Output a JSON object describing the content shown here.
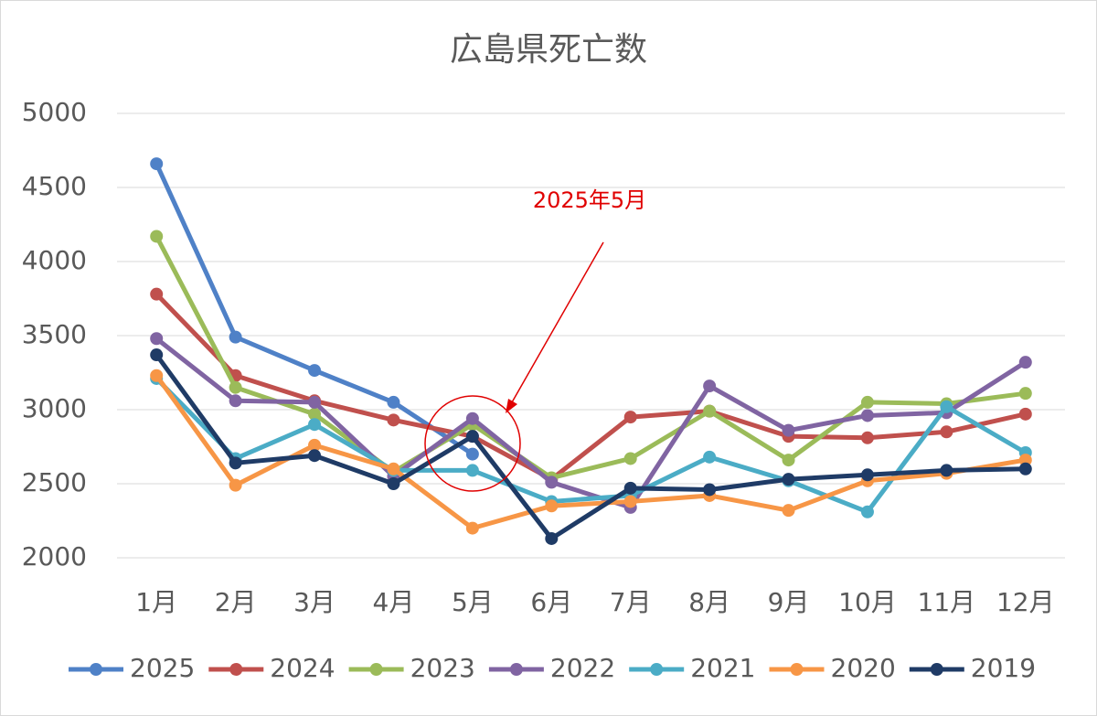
{
  "chart_data": {
    "type": "line",
    "title": "広島県死亡数",
    "categories": [
      "1月",
      "2月",
      "3月",
      "4月",
      "5月",
      "6月",
      "7月",
      "8月",
      "9月",
      "10月",
      "11月",
      "12月"
    ],
    "series": [
      {
        "name": "2025",
        "color": "#4f81c7",
        "values": [
          4660,
          3490,
          3265,
          3050,
          2700,
          null,
          null,
          null,
          null,
          null,
          null,
          null
        ]
      },
      {
        "name": "2024",
        "color": "#c0504d",
        "values": [
          3780,
          3230,
          3060,
          2930,
          2820,
          2530,
          2950,
          2990,
          2820,
          2810,
          2850,
          2970
        ]
      },
      {
        "name": "2023",
        "color": "#9bbb59",
        "values": [
          4170,
          3150,
          2970,
          2580,
          2900,
          2540,
          2670,
          2990,
          2660,
          3050,
          3040,
          3110
        ]
      },
      {
        "name": "2022",
        "color": "#8064a2",
        "values": [
          3480,
          3060,
          3050,
          2550,
          2940,
          2510,
          2340,
          3160,
          2860,
          2960,
          2980,
          3320
        ]
      },
      {
        "name": "2021",
        "color": "#4bacc6",
        "values": [
          3210,
          2670,
          2900,
          2590,
          2590,
          2380,
          2420,
          2680,
          2520,
          2310,
          3020,
          2710
        ]
      },
      {
        "name": "2020",
        "color": "#f79646",
        "values": [
          3230,
          2490,
          2760,
          2600,
          2200,
          2350,
          2380,
          2420,
          2320,
          2520,
          2570,
          2660
        ]
      },
      {
        "name": "2019",
        "color": "#1f3b66",
        "values": [
          3370,
          2640,
          2690,
          2500,
          2820,
          2130,
          2470,
          2460,
          2530,
          2560,
          2590,
          2600
        ]
      }
    ],
    "ylim": [
      2000,
      5000
    ],
    "yticks": [
      2000,
      2500,
      3000,
      3500,
      4000,
      4500,
      5000
    ],
    "grid": true,
    "legend": "bottom",
    "annotation": "2025年5月"
  }
}
